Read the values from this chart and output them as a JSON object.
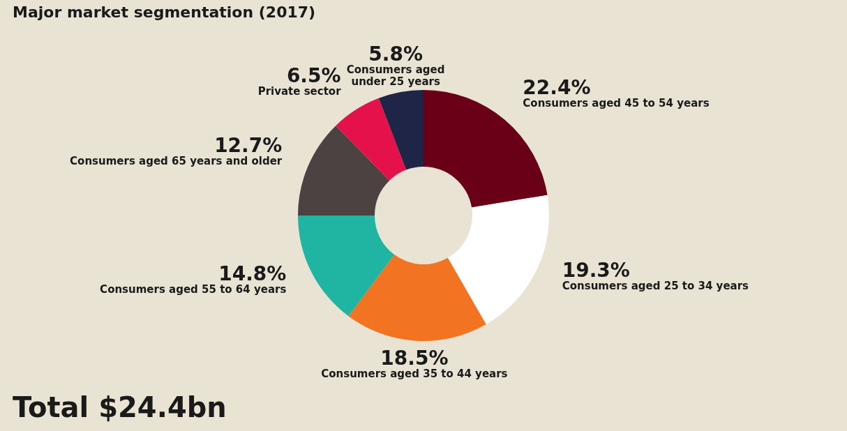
{
  "chart_data": {
    "type": "donut",
    "title": "Major market segmentation (2017)",
    "categories": [
      "Consumers aged 45 to 54 years",
      "Consumers aged 25 to 34 years",
      "Consumers aged 35 to 44 years",
      "Consumers aged 55 to 64 years",
      "Consumers aged 65 years and older",
      "Private sector",
      "Consumers aged under 25 years"
    ],
    "values": [
      22.4,
      19.3,
      18.5,
      14.8,
      12.7,
      6.5,
      5.8
    ],
    "value_labels": [
      "22.4%",
      "19.3%",
      "18.5%",
      "14.8%",
      "12.7%",
      "6.5%",
      "5.8%"
    ],
    "colors": [
      "#6a0018",
      "#ffffff",
      "#f27321",
      "#1fb5a2",
      "#4b4241",
      "#e5114b",
      "#1f2547"
    ],
    "annotations": [
      "Total $24.4bn"
    ],
    "legend": false
  }
}
